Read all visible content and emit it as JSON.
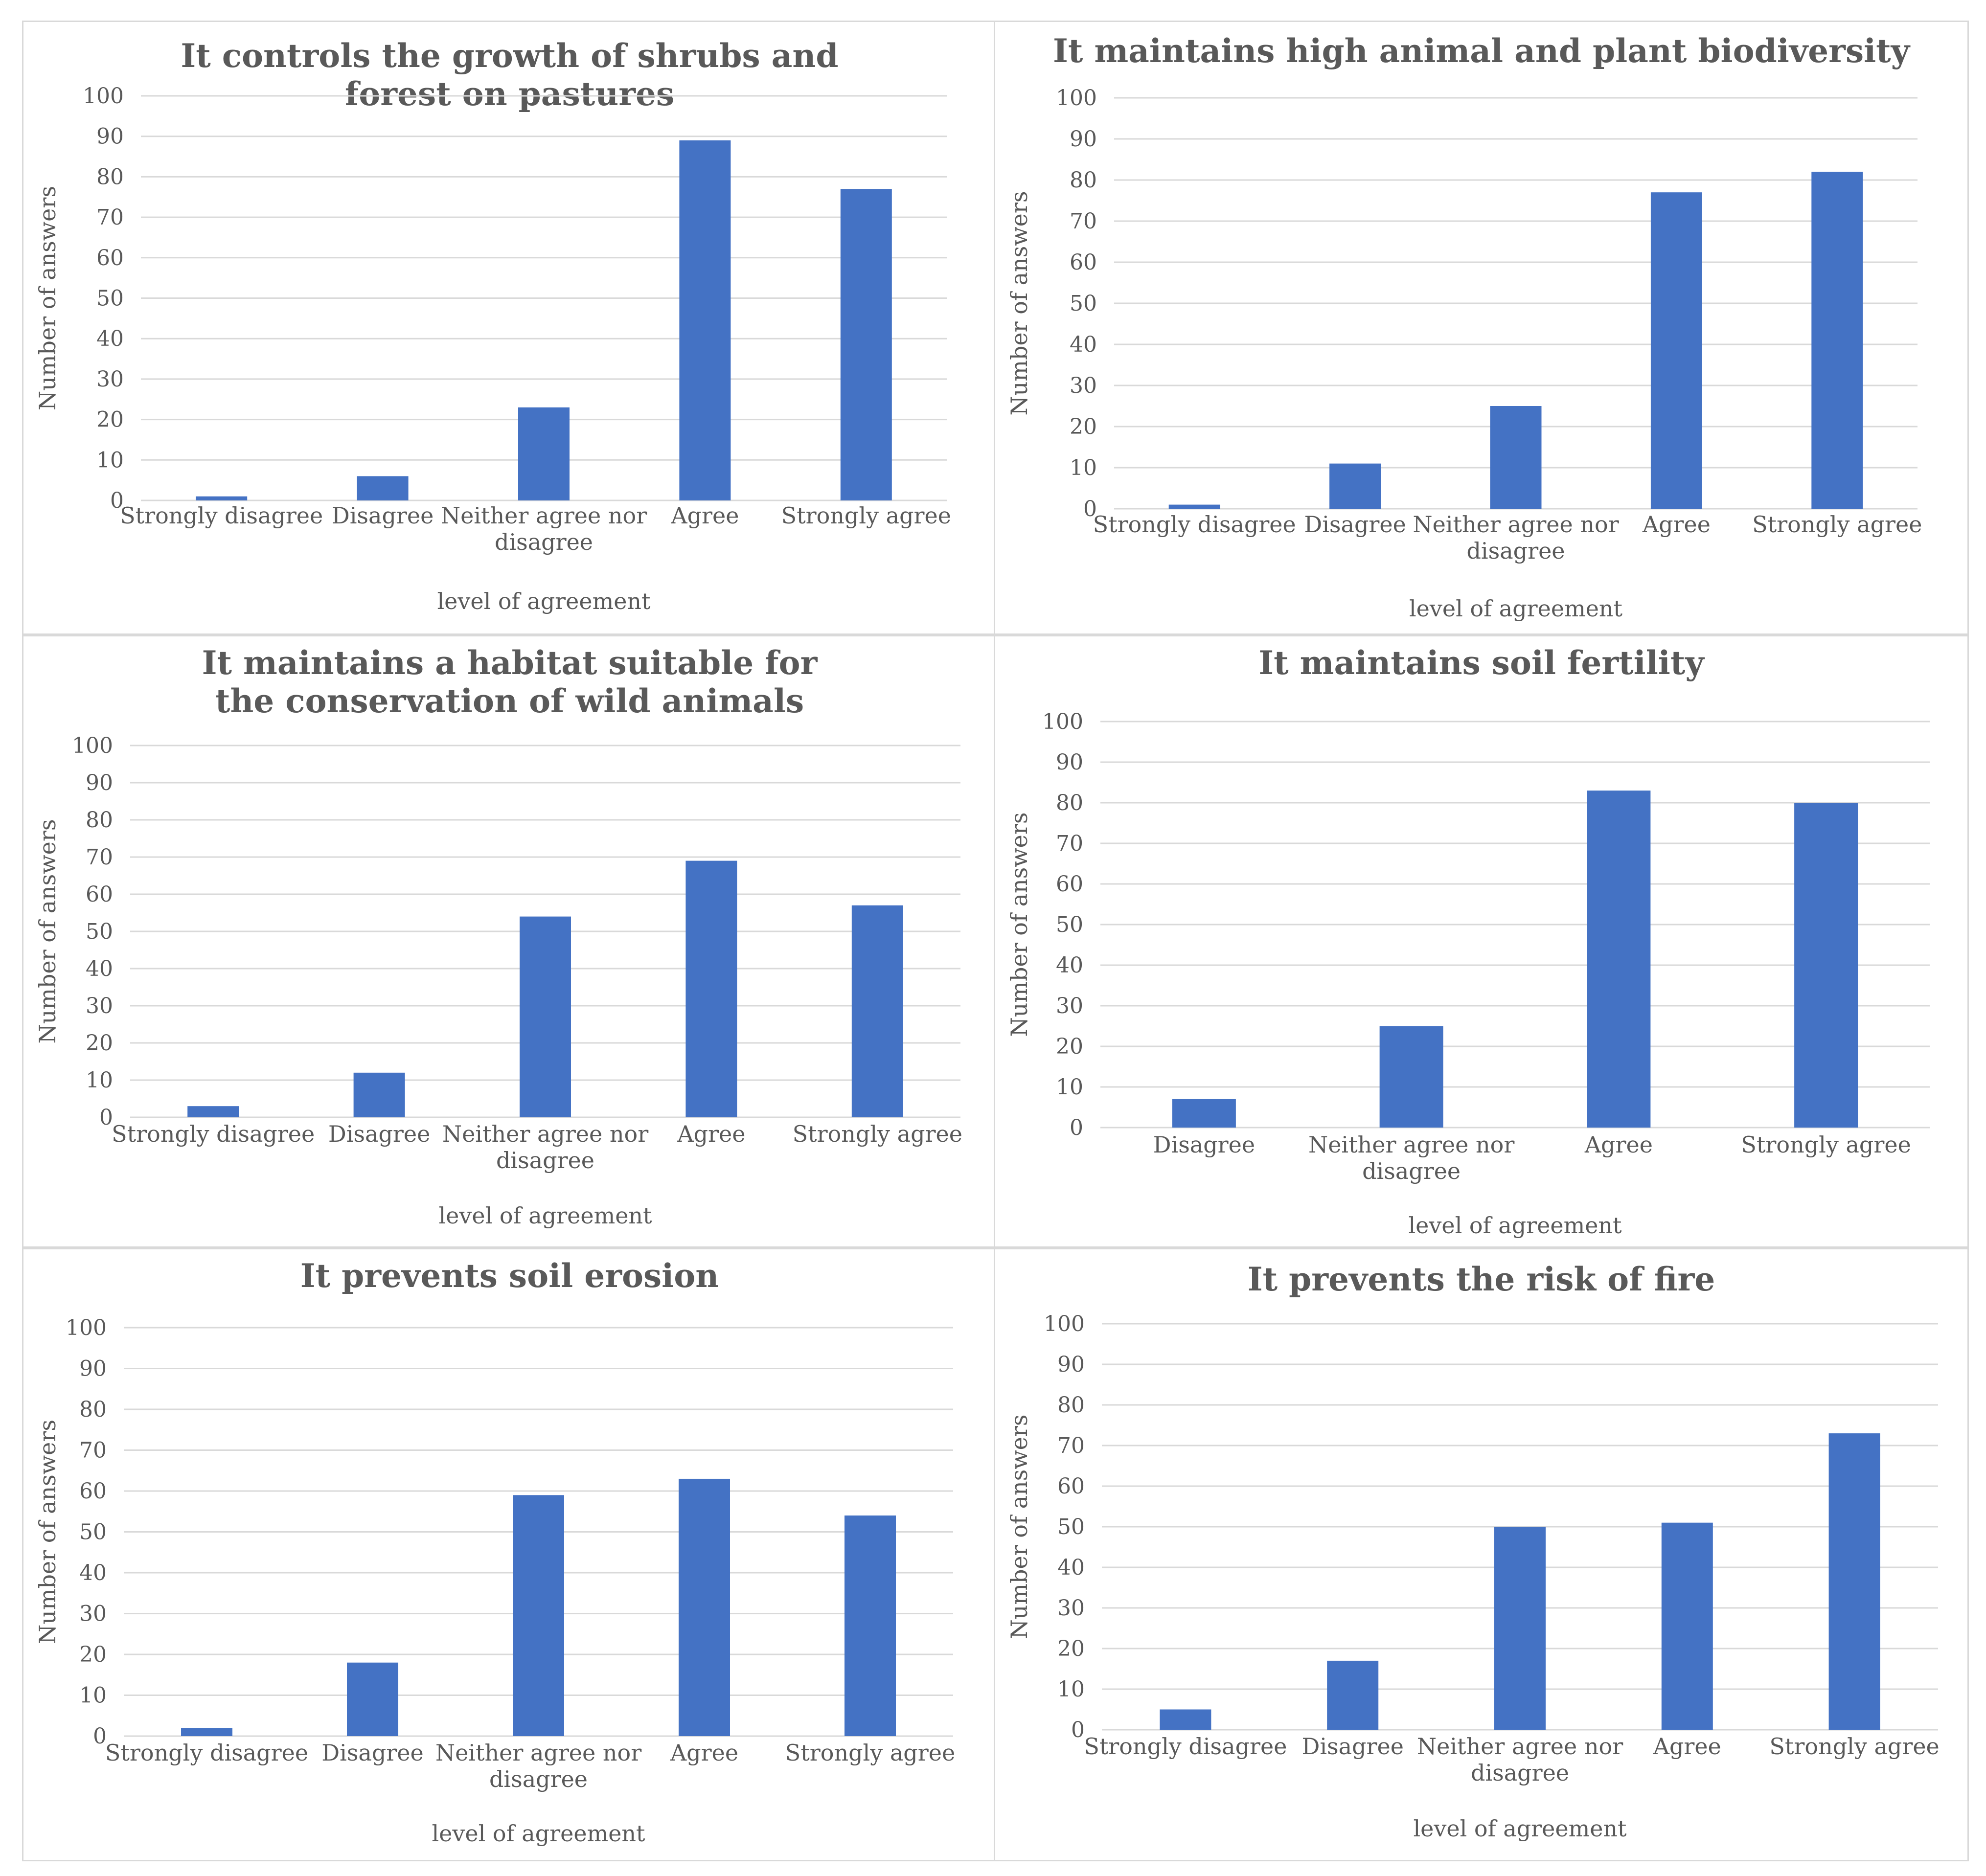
{
  "chart_data": [
    {
      "type": "bar",
      "title": "It controls the growth of shrubs and forest on pastures",
      "xlabel": "level of agreement",
      "ylabel": "Number of answers",
      "ylim": [
        0,
        100
      ],
      "yticks": [
        "0",
        "10",
        "20",
        "30",
        "40",
        "50",
        "60",
        "70",
        "80",
        "90",
        "100"
      ],
      "categories": [
        "Strongly disagree",
        "Disagree",
        "Neither agree nor disagree",
        "Agree",
        "Strongly agree"
      ],
      "values": [
        1,
        6,
        23,
        89,
        77
      ],
      "grid": true,
      "color": "#4472c4"
    },
    {
      "type": "bar",
      "title": "It maintains high animal and plant biodiversity",
      "xlabel": "level of agreement",
      "ylabel": "Number of answers",
      "ylim": [
        0,
        100
      ],
      "yticks": [
        "0",
        "10",
        "20",
        "30",
        "40",
        "50",
        "60",
        "70",
        "80",
        "90",
        "100"
      ],
      "categories": [
        "Strongly disagree",
        "Disagree",
        "Neither agree nor disagree",
        "Agree",
        "Strongly agree"
      ],
      "values": [
        1,
        11,
        25,
        77,
        82
      ],
      "grid": true,
      "color": "#4472c4"
    },
    {
      "type": "bar",
      "title": "It maintains a habitat suitable for the conservation of wild animals",
      "xlabel": "level of agreement",
      "ylabel": "Number of answers",
      "ylim": [
        0,
        100
      ],
      "yticks": [
        "0",
        "10",
        "20",
        "30",
        "40",
        "50",
        "60",
        "70",
        "80",
        "90",
        "100"
      ],
      "categories": [
        "Strongly disagree",
        "Disagree",
        "Neither agree nor disagree",
        "Agree",
        "Strongly agree"
      ],
      "values": [
        3,
        12,
        54,
        69,
        57
      ],
      "grid": true,
      "color": "#4472c4"
    },
    {
      "type": "bar",
      "title": "It maintains soil fertility",
      "xlabel": "level of agreement",
      "ylabel": "Number of answers",
      "ylim": [
        0,
        100
      ],
      "yticks": [
        "0",
        "10",
        "20",
        "30",
        "40",
        "50",
        "60",
        "70",
        "80",
        "90",
        "100"
      ],
      "categories": [
        "Disagree",
        "Neither agree nor disagree",
        "Agree",
        "Strongly agree"
      ],
      "values": [
        7,
        25,
        83,
        80
      ],
      "grid": true,
      "color": "#4472c4"
    },
    {
      "type": "bar",
      "title": "It prevents soil erosion",
      "xlabel": "level of agreement",
      "ylabel": "Number of answers",
      "ylim": [
        0,
        100
      ],
      "yticks": [
        "0",
        "10",
        "20",
        "30",
        "40",
        "50",
        "60",
        "70",
        "80",
        "90",
        "100"
      ],
      "categories": [
        "Strongly disagree",
        "Disagree",
        "Neither agree nor disagree",
        "Agree",
        "Strongly agree"
      ],
      "values": [
        2,
        18,
        59,
        63,
        54
      ],
      "grid": true,
      "color": "#4472c4"
    },
    {
      "type": "bar",
      "title": "It prevents the risk of fire",
      "xlabel": "level of agreement",
      "ylabel": "Number of answers",
      "ylim": [
        0,
        100
      ],
      "yticks": [
        "0",
        "10",
        "20",
        "30",
        "40",
        "50",
        "60",
        "70",
        "80",
        "90",
        "100"
      ],
      "categories": [
        "Strongly disagree",
        "Disagree",
        "Neither agree nor disagree",
        "Agree",
        "Strongly agree"
      ],
      "values": [
        5,
        17,
        50,
        51,
        73
      ],
      "grid": true,
      "color": "#4472c4"
    }
  ]
}
